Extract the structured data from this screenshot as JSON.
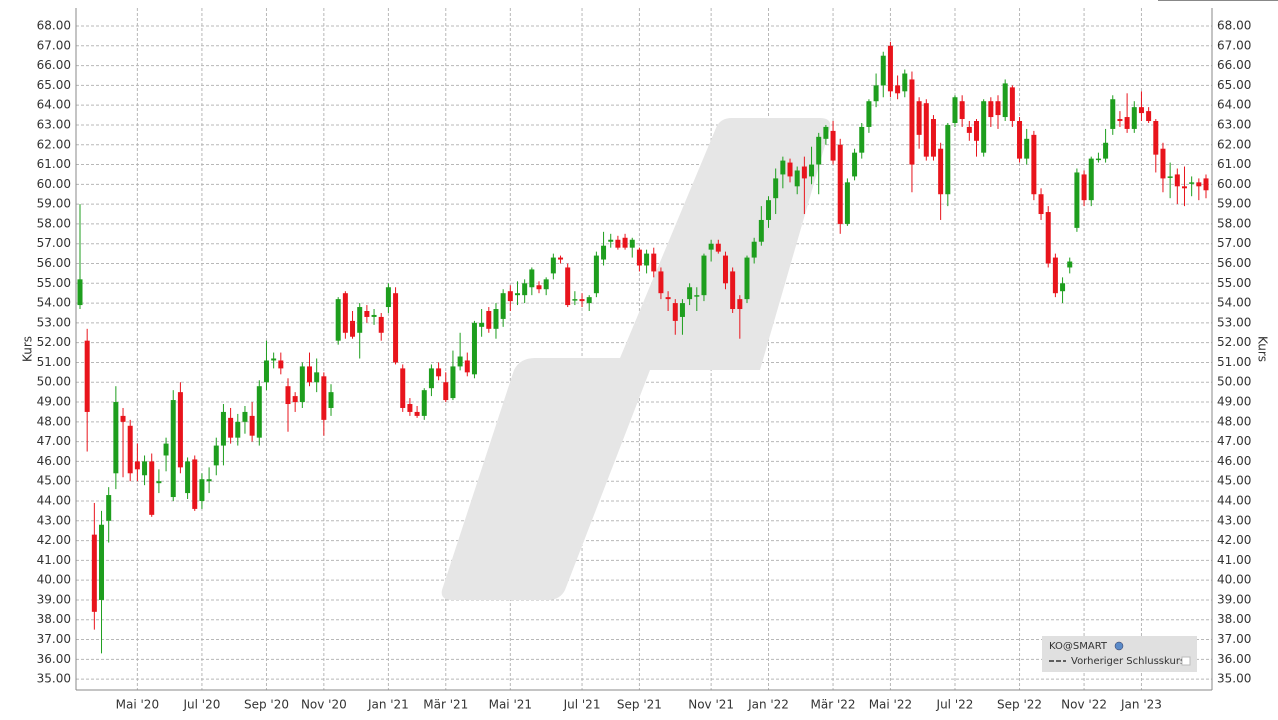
{
  "chart_data": {
    "type": "candlestick",
    "y_label": "Kurs",
    "y2_label": "Kurs",
    "legend": [
      "KO@SMART",
      "Vorheriger Schlusskurs"
    ],
    "legend_position": "bottom-right",
    "up_color": "#1e9e1e",
    "down_color": "#e8141c",
    "grid": true,
    "ylim": [
      34.45,
      68.91
    ],
    "yticks": [
      {
        "value": 35,
        "label": "35.00"
      },
      {
        "value": 36,
        "label": "36.00"
      },
      {
        "value": 37,
        "label": "37.00"
      },
      {
        "value": 38,
        "label": "38.00"
      },
      {
        "value": 39,
        "label": "39.00"
      },
      {
        "value": 40,
        "label": "40.00"
      },
      {
        "value": 41,
        "label": "41.00"
      },
      {
        "value": 42,
        "label": "42.00"
      },
      {
        "value": 43,
        "label": "43.00"
      },
      {
        "value": 44,
        "label": "44.00"
      },
      {
        "value": 45,
        "label": "45.00"
      },
      {
        "value": 46,
        "label": "46.00"
      },
      {
        "value": 47,
        "label": "47.00"
      },
      {
        "value": 48,
        "label": "48.00"
      },
      {
        "value": 49,
        "label": "49.00"
      },
      {
        "value": 50,
        "label": "50.00"
      },
      {
        "value": 51,
        "label": "51.00"
      },
      {
        "value": 52,
        "label": "52.00"
      },
      {
        "value": 53,
        "label": "53.00"
      },
      {
        "value": 54,
        "label": "54.00"
      },
      {
        "value": 55,
        "label": "55.00"
      },
      {
        "value": 56,
        "label": "56.00"
      },
      {
        "value": 57,
        "label": "57.00"
      },
      {
        "value": 58,
        "label": "58.00"
      },
      {
        "value": 59,
        "label": "59.00"
      },
      {
        "value": 60,
        "label": "60.00"
      },
      {
        "value": 61,
        "label": "61.00"
      },
      {
        "value": 62,
        "label": "62.00"
      },
      {
        "value": 63,
        "label": "63.00"
      },
      {
        "value": 64,
        "label": "64.00"
      },
      {
        "value": 65,
        "label": "65.00"
      },
      {
        "value": 66,
        "label": "66.00"
      },
      {
        "value": 67,
        "label": "67.00"
      },
      {
        "value": 68,
        "label": "68.00"
      }
    ],
    "categories": [
      null,
      null,
      null,
      null,
      null,
      null,
      null,
      null,
      "Mai '20",
      null,
      null,
      null,
      null,
      null,
      null,
      null,
      null,
      "Jul '20",
      null,
      null,
      null,
      null,
      null,
      null,
      null,
      null,
      "Sep '20",
      null,
      null,
      null,
      null,
      null,
      null,
      null,
      "Nov '20",
      null,
      null,
      null,
      null,
      null,
      null,
      null,
      null,
      "Jan '21",
      null,
      null,
      null,
      null,
      null,
      null,
      null,
      "Mär '21",
      null,
      null,
      null,
      null,
      null,
      null,
      null,
      null,
      "Mai '21",
      null,
      null,
      null,
      null,
      null,
      null,
      null,
      null,
      null,
      "Jul '21",
      null,
      null,
      null,
      null,
      null,
      null,
      null,
      "Sep '21",
      null,
      null,
      null,
      null,
      null,
      null,
      null,
      null,
      null,
      "Nov '21",
      null,
      null,
      null,
      null,
      null,
      null,
      null,
      "Jan '22",
      null,
      null,
      null,
      null,
      null,
      null,
      null,
      null,
      "Mär '22",
      null,
      null,
      null,
      null,
      null,
      null,
      null,
      "Mai '22",
      null,
      null,
      null,
      null,
      null,
      null,
      null,
      null,
      "Jul '22",
      null,
      null,
      null,
      null,
      null,
      null,
      null,
      null,
      "Sep '22",
      null,
      null,
      null,
      null,
      null,
      null,
      null,
      null,
      "Nov '22",
      null,
      null,
      null,
      null,
      null,
      null,
      null,
      "Jan '23",
      null,
      null,
      null,
      null,
      null,
      null,
      null,
      null,
      null
    ],
    "ohlc": [
      [
        53.9,
        59,
        53.7,
        55.2
      ],
      [
        52.1,
        52.7,
        46.5,
        48.5
      ],
      [
        42.3,
        43.9,
        37.5,
        38.4
      ],
      [
        39,
        43.5,
        36.3,
        42.8
      ],
      [
        43,
        44.7,
        41.9,
        44.3
      ],
      [
        45.4,
        49.8,
        44.6,
        49
      ],
      [
        48.3,
        48.7,
        45.2,
        48
      ],
      [
        47.8,
        48.1,
        45,
        45.4
      ],
      [
        46,
        46.9,
        45,
        45.6
      ],
      [
        45.3,
        46.3,
        44.8,
        46
      ],
      [
        46,
        46.4,
        43.2,
        43.3
      ],
      [
        44.9,
        45.6,
        44.4,
        45
      ],
      [
        46.3,
        47.2,
        45.5,
        46.9
      ],
      [
        44.2,
        49.6,
        44,
        49.1
      ],
      [
        49.5,
        50,
        45.4,
        45.7
      ],
      [
        44.4,
        46.2,
        44.1,
        46
      ],
      [
        46.1,
        46.3,
        43.5,
        43.6
      ],
      [
        44,
        45.4,
        43.6,
        45.1
      ],
      [
        45,
        45.7,
        44.4,
        45.1
      ],
      [
        45.8,
        47.2,
        45.3,
        46.8
      ],
      [
        46.8,
        48.9,
        45.8,
        48.5
      ],
      [
        48.2,
        48.7,
        46.9,
        47.2
      ],
      [
        47.2,
        48.4,
        46.8,
        48
      ],
      [
        48,
        48.8,
        47.4,
        48.5
      ],
      [
        48.3,
        49,
        47,
        47.3
      ],
      [
        47.2,
        50.1,
        46.8,
        49.8
      ],
      [
        50,
        52.1,
        49.6,
        51.1
      ],
      [
        51.1,
        51.5,
        50.7,
        51.2
      ],
      [
        51.1,
        51.5,
        50.4,
        50.7
      ],
      [
        49.8,
        50.2,
        47.5,
        48.9
      ],
      [
        49.3,
        49.5,
        48.5,
        49
      ],
      [
        49,
        51,
        48.7,
        50.8
      ],
      [
        50.8,
        51.5,
        49.8,
        50
      ],
      [
        50,
        51.2,
        49.5,
        50.5
      ],
      [
        50.3,
        50.5,
        47.3,
        48.1
      ],
      [
        48.7,
        49.9,
        48.3,
        49.5
      ],
      [
        52.1,
        54.3,
        51.9,
        54.2
      ],
      [
        54.5,
        54.6,
        52.2,
        52.5
      ],
      [
        53.1,
        53.6,
        52.2,
        52.3
      ],
      [
        52.5,
        54,
        51.2,
        53.8
      ],
      [
        53.6,
        53.9,
        53,
        53.3
      ],
      [
        53.3,
        53.7,
        52.9,
        53.4
      ],
      [
        53.3,
        53.5,
        52.1,
        52.5
      ],
      [
        53.8,
        55,
        53.5,
        54.8
      ],
      [
        54.5,
        54.8,
        50.9,
        51
      ],
      [
        50.7,
        50.9,
        48.5,
        48.7
      ],
      [
        48.9,
        49.2,
        48.3,
        48.5
      ],
      [
        48.5,
        48.8,
        48.2,
        48.3
      ],
      [
        48.3,
        49.7,
        48.1,
        49.6
      ],
      [
        49.7,
        50.9,
        49.3,
        50.7
      ],
      [
        50.7,
        51,
        50.1,
        50.3
      ],
      [
        50,
        50.5,
        49,
        49.1
      ],
      [
        49.2,
        51.6,
        49.1,
        50.8
      ],
      [
        50.8,
        52.5,
        50.6,
        51.3
      ],
      [
        51.1,
        51.5,
        50.3,
        50.5
      ],
      [
        50.4,
        53.1,
        50.2,
        53
      ],
      [
        52.8,
        53.7,
        52.3,
        53
      ],
      [
        53.6,
        53.8,
        52.5,
        52.7
      ],
      [
        52.7,
        54,
        52.2,
        53.7
      ],
      [
        53.2,
        54.7,
        52.8,
        54.5
      ],
      [
        54.6,
        54.9,
        53.6,
        54.1
      ],
      [
        54.4,
        55.1,
        53.9,
        54.5
      ],
      [
        54.4,
        55.2,
        54,
        55
      ],
      [
        54.8,
        55.8,
        54.4,
        55.7
      ],
      [
        54.9,
        55.1,
        54.5,
        54.7
      ],
      [
        54.7,
        55.3,
        54.4,
        55.2
      ],
      [
        55.5,
        56.5,
        55.2,
        56.3
      ],
      [
        56.3,
        56.4,
        56,
        56.2
      ],
      [
        55.8,
        56,
        53.8,
        53.9
      ],
      [
        54.2,
        54.6,
        53.9,
        54.2
      ],
      [
        54.2,
        54.5,
        53.8,
        54.1
      ],
      [
        54,
        54.4,
        53.6,
        54.3
      ],
      [
        54.5,
        56.6,
        54.3,
        56.4
      ],
      [
        56.2,
        57.6,
        55.9,
        56.9
      ],
      [
        57.1,
        57.5,
        56.8,
        57.2
      ],
      [
        57.2,
        57.4,
        56.7,
        56.8
      ],
      [
        57.3,
        57.5,
        56.7,
        56.8
      ],
      [
        56.8,
        57.3,
        56.3,
        57.2
      ],
      [
        56.7,
        56.8,
        55.6,
        55.9
      ],
      [
        55.9,
        56.7,
        55.5,
        56.5
      ],
      [
        56.5,
        56.8,
        55.3,
        55.6
      ],
      [
        55.6,
        55.8,
        54.2,
        54.5
      ],
      [
        54.3,
        54.6,
        53.6,
        54.2
      ],
      [
        54,
        54.2,
        52.4,
        53.1
      ],
      [
        53.3,
        54.2,
        52.4,
        54
      ],
      [
        54.2,
        55,
        53.9,
        54.8
      ],
      [
        54.4,
        54.8,
        53.6,
        54.4
      ],
      [
        54.4,
        56.5,
        54.1,
        56.4
      ],
      [
        56.7,
        57.2,
        56.1,
        57
      ],
      [
        57,
        57.2,
        56.5,
        56.6
      ],
      [
        56.4,
        56.6,
        54.7,
        55
      ],
      [
        55.6,
        55.8,
        53.5,
        53.7
      ],
      [
        54.2,
        54.4,
        52.2,
        53.7
      ],
      [
        54.2,
        56.4,
        54,
        56.3
      ],
      [
        56.3,
        57.3,
        56,
        57.1
      ],
      [
        57.1,
        58.9,
        56.9,
        58.2
      ],
      [
        58.2,
        59.4,
        57.8,
        59.2
      ],
      [
        59.3,
        60.8,
        58.5,
        60.3
      ],
      [
        60.5,
        61.4,
        59.8,
        61.2
      ],
      [
        61.1,
        61.3,
        60.1,
        60.4
      ],
      [
        59.9,
        60.9,
        59.5,
        60.7
      ],
      [
        60.9,
        61.4,
        58.5,
        60.3
      ],
      [
        60.4,
        61.9,
        60,
        61
      ],
      [
        61,
        62.6,
        59.5,
        62.4
      ],
      [
        62.3,
        63,
        62,
        62.9
      ],
      [
        62.7,
        63.2,
        61,
        61.2
      ],
      [
        62,
        62.3,
        57.5,
        58
      ],
      [
        58,
        60.3,
        57.9,
        60.1
      ],
      [
        60.4,
        61.8,
        60.2,
        61.6
      ],
      [
        61.6,
        63.1,
        61.3,
        62.9
      ],
      [
        62.9,
        64.3,
        62.6,
        64.2
      ],
      [
        64.2,
        65.6,
        63.9,
        65
      ],
      [
        65,
        66.7,
        64.4,
        66.5
      ],
      [
        67,
        67.2,
        64.4,
        64.7
      ],
      [
        65,
        65.5,
        64.3,
        64.6
      ],
      [
        64.7,
        65.8,
        64.4,
        65.6
      ],
      [
        65.3,
        65.7,
        59.6,
        61
      ],
      [
        64.2,
        64.4,
        61.8,
        62.5
      ],
      [
        64.1,
        64.3,
        61.2,
        61.4
      ],
      [
        63.3,
        63.5,
        61.2,
        61.4
      ],
      [
        61.8,
        62.1,
        58.2,
        59.5
      ],
      [
        59.5,
        63.1,
        58.9,
        63
      ],
      [
        63.1,
        64.5,
        62.9,
        64.4
      ],
      [
        64.2,
        64.5,
        62.9,
        63.3
      ],
      [
        62.9,
        63.2,
        62.2,
        62.6
      ],
      [
        63.2,
        63.3,
        61.4,
        62.2
      ],
      [
        61.6,
        64.3,
        61.4,
        64.2
      ],
      [
        64.2,
        64.4,
        62.9,
        63.4
      ],
      [
        64.2,
        64.5,
        62.8,
        63.5
      ],
      [
        63.4,
        65.3,
        63.2,
        65.1
      ],
      [
        64.9,
        65,
        62.9,
        63.2
      ],
      [
        63.2,
        63.4,
        61.1,
        61.3
      ],
      [
        61.3,
        62.8,
        61,
        62.3
      ],
      [
        62.5,
        62.7,
        59.2,
        59.5
      ],
      [
        59.5,
        59.8,
        58.2,
        58.5
      ],
      [
        58.6,
        58.9,
        55.8,
        56
      ],
      [
        56.3,
        56.5,
        54.3,
        54.5
      ],
      [
        54.6,
        55.3,
        54,
        55
      ],
      [
        55.8,
        56.3,
        55.5,
        56.1
      ],
      [
        57.8,
        60.8,
        57.6,
        60.6
      ],
      [
        60.5,
        60.7,
        58.9,
        59.2
      ],
      [
        59.2,
        61.4,
        58.9,
        61.3
      ],
      [
        61.3,
        61.6,
        61.1,
        61.3
      ],
      [
        61.3,
        62.8,
        61.1,
        62.1
      ],
      [
        62.8,
        64.5,
        62.5,
        64.3
      ],
      [
        63.3,
        63.7,
        62.9,
        63.2
      ],
      [
        63.4,
        64.6,
        62.6,
        62.8
      ],
      [
        62.8,
        64.2,
        62.6,
        63.9
      ],
      [
        63.9,
        64.7,
        63.2,
        63.6
      ],
      [
        63.7,
        63.9,
        63.1,
        63.2
      ],
      [
        63.2,
        63.3,
        60.6,
        61.5
      ],
      [
        61.8,
        62.1,
        59.6,
        60.3
      ],
      [
        60.4,
        61.1,
        59.3,
        60.4
      ],
      [
        60.5,
        60.8,
        59,
        59.9
      ],
      [
        59.9,
        60.9,
        58.9,
        59.8
      ],
      [
        60.1,
        60.4,
        59.4,
        60.1
      ],
      [
        60.1,
        60.3,
        59.2,
        59.9
      ],
      [
        60.3,
        60.5,
        59.3,
        59.7
      ]
    ]
  }
}
